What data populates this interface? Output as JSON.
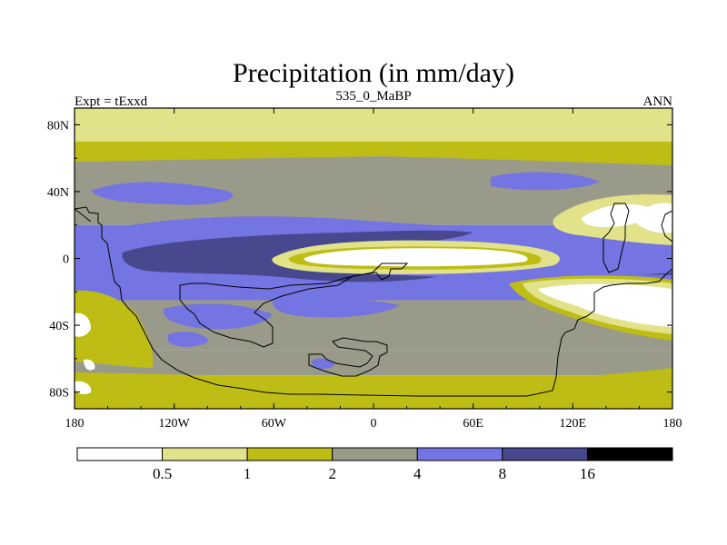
{
  "chart_data": {
    "type": "heatmap",
    "title": "Precipitation (in mm/day)",
    "subtitle_left": "Expt = tExxd",
    "subtitle_center": "535_0_MaBP",
    "subtitle_right": "ANN",
    "xlabel": "",
    "ylabel": "",
    "xlim": [
      -180,
      180
    ],
    "ylim": [
      -90,
      90
    ],
    "x_ticks": [
      {
        "value": -180,
        "label": "180"
      },
      {
        "value": -120,
        "label": "120W"
      },
      {
        "value": -60,
        "label": "60W"
      },
      {
        "value": 0,
        "label": "0"
      },
      {
        "value": 60,
        "label": "60E"
      },
      {
        "value": 120,
        "label": "120E"
      },
      {
        "value": 180,
        "label": "180"
      }
    ],
    "y_ticks": [
      {
        "value": 80,
        "label": "80N"
      },
      {
        "value": 40,
        "label": "40N"
      },
      {
        "value": 0,
        "label": "0"
      },
      {
        "value": -40,
        "label": "40S"
      },
      {
        "value": -80,
        "label": "80S"
      }
    ],
    "colorbar": {
      "levels": [
        "0.5",
        "1",
        "2",
        "4",
        "8",
        "16"
      ],
      "colors": [
        "#ffffff",
        "#e2e28a",
        "#bdbd16",
        "#9a9a8a",
        "#7474e2",
        "#48488e",
        "#000000"
      ]
    },
    "field_zonal_levels": [
      {
        "lat": 90,
        "level": 1
      },
      {
        "lat": 70,
        "level": 2
      },
      {
        "lat": 52,
        "level": 3
      },
      {
        "lat": 38,
        "level": 3
      },
      {
        "lat": 20,
        "level": 4
      },
      {
        "lat": 5,
        "level": 5
      },
      {
        "lat": -10,
        "level": 4
      },
      {
        "lat": -25,
        "level": 3
      },
      {
        "lat": -55,
        "level": 3
      },
      {
        "lat": -70,
        "level": 2
      },
      {
        "lat": -90,
        "level": 2
      }
    ]
  }
}
